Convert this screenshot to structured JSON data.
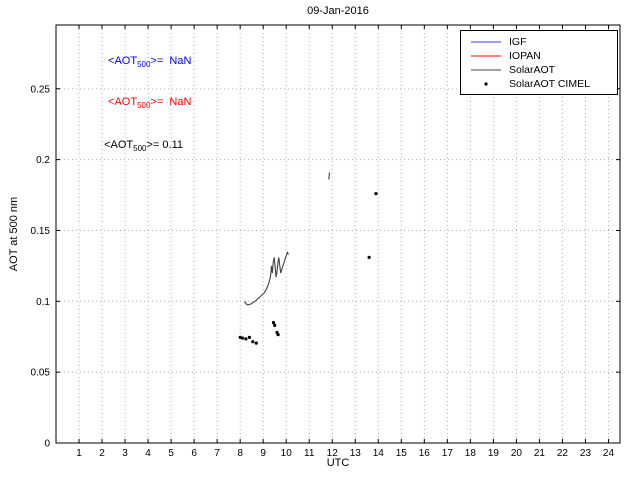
{
  "chart_data": {
    "type": "line",
    "title": "09-Jan-2016",
    "xlabel": "UTC",
    "ylabel": "AOT at 500 nm",
    "xlim": [
      0,
      24.5
    ],
    "ylim": [
      0,
      0.295
    ],
    "grid": true,
    "xticks": [
      1,
      2,
      3,
      4,
      5,
      6,
      7,
      8,
      9,
      10,
      11,
      12,
      13,
      14,
      15,
      16,
      17,
      18,
      19,
      20,
      21,
      22,
      23,
      24
    ],
    "yticks": [
      0,
      0.05,
      0.1,
      0.15,
      0.2,
      0.25
    ],
    "ytick_labels": [
      "0",
      "0.05",
      "0.1",
      "0.15",
      "0.2",
      "0.25"
    ],
    "colors": {
      "igf": "#3b3bff",
      "iopan": "#ff0000",
      "solaraot": "#404040",
      "cimel": "#000000",
      "grid": "#b0b0b0",
      "axes": "#000000"
    },
    "legend": {
      "position": "top-right",
      "entries": [
        {
          "label": "IGF",
          "color": "#3b3bff",
          "marker": "line"
        },
        {
          "label": "IOPAN",
          "color": "#ff0000",
          "marker": "line"
        },
        {
          "label": "SolarAOT",
          "color": "#404040",
          "marker": "line"
        },
        {
          "label": "SolarAOT CIMEL",
          "color": "#000000",
          "marker": "dot"
        }
      ]
    },
    "annotations": [
      {
        "pre": "<AOT",
        "sub": "500",
        "post": ">=  NaN",
        "color": "#0000ff",
        "x": 2.26,
        "y": 0.268
      },
      {
        "pre": "<AOT",
        "sub": "500",
        "post": ">=  NaN",
        "color": "#ff0000",
        "x": 2.26,
        "y": 0.239
      },
      {
        "pre": "<AOT",
        "sub": "500",
        "post": ">= 0.11",
        "color": "#000000",
        "x": 2.09,
        "y": 0.209
      }
    ],
    "series": [
      {
        "name": "IGF",
        "type": "line",
        "color": "#3b3bff",
        "segments": []
      },
      {
        "name": "IOPAN",
        "type": "line",
        "color": "#ff0000",
        "segments": []
      },
      {
        "name": "SolarAOT",
        "type": "line",
        "color": "#404040",
        "segments": [
          [
            [
              8.2,
              0.1
            ],
            [
              8.25,
              0.0985
            ],
            [
              8.3,
              0.0975
            ],
            [
              8.35,
              0.0975
            ],
            [
              8.45,
              0.098
            ],
            [
              8.55,
              0.099
            ],
            [
              8.65,
              0.1
            ],
            [
              8.75,
              0.1015
            ],
            [
              8.85,
              0.103
            ],
            [
              8.95,
              0.1045
            ],
            [
              9.05,
              0.106
            ],
            [
              9.15,
              0.109
            ],
            [
              9.25,
              0.113
            ],
            [
              9.32,
              0.118
            ],
            [
              9.36,
              0.125
            ],
            [
              9.4,
              0.12
            ],
            [
              9.44,
              0.128
            ],
            [
              9.48,
              0.131
            ],
            [
              9.52,
              0.124
            ],
            [
              9.56,
              0.117
            ],
            [
              9.6,
              0.121
            ],
            [
              9.64,
              0.127
            ],
            [
              9.68,
              0.131
            ],
            [
              9.72,
              0.125
            ],
            [
              9.76,
              0.12
            ],
            [
              9.8,
              0.122
            ],
            [
              9.85,
              0.125
            ],
            [
              9.9,
              0.127
            ],
            [
              9.95,
              0.13
            ],
            [
              10.0,
              0.132
            ],
            [
              10.05,
              0.1345
            ],
            [
              10.1,
              0.133
            ]
          ],
          [
            [
              11.85,
              0.186
            ],
            [
              11.88,
              0.191
            ]
          ]
        ]
      },
      {
        "name": "SolarAOT CIMEL",
        "type": "scatter",
        "color": "#000000",
        "points": [
          [
            8.0,
            0.0745
          ],
          [
            8.1,
            0.074
          ],
          [
            8.25,
            0.0735
          ],
          [
            8.4,
            0.0745
          ],
          [
            8.55,
            0.0715
          ],
          [
            8.7,
            0.0705
          ],
          [
            9.45,
            0.085
          ],
          [
            9.5,
            0.083
          ],
          [
            9.6,
            0.078
          ],
          [
            9.65,
            0.0765
          ],
          [
            13.6,
            0.131
          ],
          [
            13.9,
            0.176
          ]
        ]
      }
    ]
  }
}
